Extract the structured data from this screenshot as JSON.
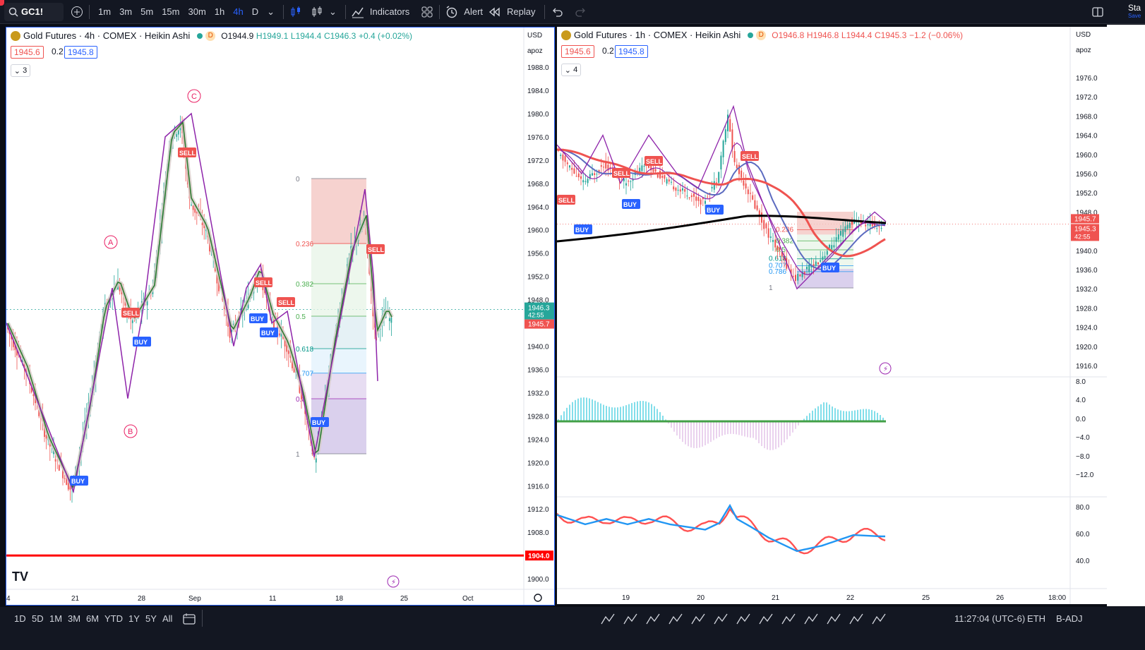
{
  "toolbar": {
    "symbol": "GC1!",
    "intervals": [
      "1m",
      "3m",
      "5m",
      "15m",
      "30m",
      "1h",
      "4h",
      "D"
    ],
    "active_interval": "4h",
    "indicators_label": "Indicators",
    "alert_label": "Alert",
    "replay_label": "Replay",
    "right_label": "Sta",
    "right_sub": "Save"
  },
  "left_chart": {
    "title": "Gold Futures · 4h · COMEX · Heikin Ashi",
    "badge": "D",
    "ohlc": {
      "o": "O1944.9",
      "h": "H1949.1",
      "l": "L1944.4",
      "c": "C1946.3",
      "chg": "+0.4 (+0.02%)"
    },
    "bid": "1945.6",
    "spread": "0.2",
    "ask": "1945.8",
    "study_count": "3",
    "currency": "USD",
    "scale_mode": "apoz",
    "y_ticks": [
      "1988.0",
      "1984.0",
      "1980.0",
      "1976.0",
      "1972.0",
      "1968.0",
      "1964.0",
      "1960.0",
      "1956.0",
      "1952.0",
      "1948.0",
      "1944.0",
      "1940.0",
      "1936.0",
      "1932.0",
      "1928.0",
      "1924.0",
      "1920.0",
      "1916.0",
      "1912.0",
      "1908.0",
      "1904.0",
      "1900.0"
    ],
    "x_ticks": [
      "4",
      "21",
      "28",
      "Sep",
      "11",
      "18",
      "25",
      "Oct"
    ],
    "price_label": "1946.3",
    "countdown": "42:55",
    "price_label2": "1945.7",
    "support_label": "1904.0",
    "wave_labels": [
      "A",
      "B",
      "C"
    ],
    "fib_levels": [
      "0",
      "0.236",
      "0.382",
      "0.5",
      "0.618",
      "0.707",
      "0.8",
      "1"
    ],
    "signals": {
      "sell": "SELL",
      "buy": "BUY"
    },
    "colors": {
      "up": "#26a69a",
      "down": "#ef5350",
      "accent": "#2962ff",
      "support": "#ff0000"
    }
  },
  "right_chart": {
    "title": "Gold Futures · 1h · COMEX · Heikin Ashi",
    "badge": "D",
    "ohlc": {
      "o": "O1946.8",
      "h": "H1946.8",
      "l": "L1944.4",
      "c": "C1945.3",
      "chg": "−1.2 (−0.06%)"
    },
    "bid": "1945.6",
    "spread": "0.2",
    "ask": "1945.8",
    "study_count": "4",
    "currency": "USD",
    "scale_mode": "apoz",
    "y_ticks": [
      "1976.0",
      "1972.0",
      "1968.0",
      "1964.0",
      "1960.0",
      "1956.0",
      "1952.0",
      "1948.0",
      "1944.0",
      "1940.0",
      "1936.0",
      "1932.0",
      "1928.0",
      "1924.0",
      "1920.0",
      "1916.0"
    ],
    "osc_ticks": [
      "8.0",
      "4.0",
      "0.0",
      "−4.0",
      "−8.0",
      "−12.0"
    ],
    "rsi_ticks": [
      "80.0",
      "60.0",
      "40.0"
    ],
    "x_ticks": [
      "19",
      "20",
      "21",
      "22",
      "25",
      "26",
      "18:00"
    ],
    "price_label": "1945.7",
    "price_label2": "1945.3",
    "countdown": "42:55",
    "fib_levels": [
      "0.236",
      "0.382",
      "0.5",
      "0.618",
      "0.707",
      "0.786",
      "1"
    ]
  },
  "bottom": {
    "ranges": [
      "1D",
      "5D",
      "1M",
      "3M",
      "6M",
      "YTD",
      "1Y",
      "5Y",
      "All"
    ],
    "time": "11:27:04 (UTC-6)",
    "session": "ETH",
    "adj": "B-ADJ"
  }
}
